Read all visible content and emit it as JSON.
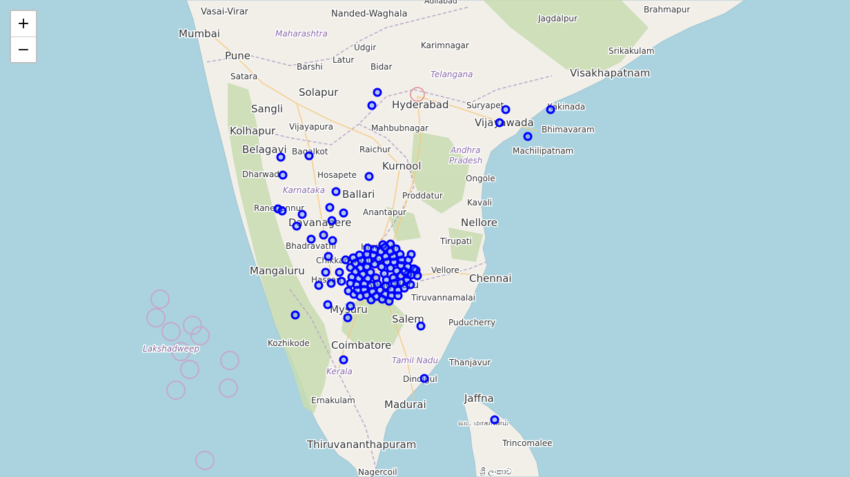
{
  "map": {
    "zoom_controls": {
      "zoom_in": "+",
      "zoom_out": "−"
    },
    "city_labels": {
      "vasai_virar": "Vasai-Virar",
      "nanded": "Nanded-Waghala",
      "adilabad": "Adilabad",
      "jagdalpur": "Jagdalpur",
      "brahmapur": "Brahmapur",
      "mumbai": "Mumbai",
      "udgir": "Udgir",
      "karimnagar": "Karimnagar",
      "srikakulam": "Srikakulam",
      "pune": "Pune",
      "latur": "Latur",
      "barshi": "Barshi",
      "bidar": "Bidar",
      "visakhapatnam": "Visakhapatnam",
      "satara": "Satara",
      "solapur": "Solapur",
      "hyderabad": "Hyderabad",
      "suryapet": "Suryapet",
      "kakinada": "Kakinada",
      "sangli": "Sangli",
      "vijayawada": "Vijayawada",
      "kolhapur": "Kolhapur",
      "vijayapura": "Vijayapura",
      "mahbubnagar": "Mahbubnagar",
      "bhimavaram": "Bhimavaram",
      "machilipatnam": "Machilipatnam",
      "belagavi": "Belagavi",
      "bagalkot": "Bagalkot",
      "raichur": "Raichur",
      "kurnool": "Kurnool",
      "dharwad": "Dharwad",
      "hosapete": "Hosapete",
      "ongole": "Ongole",
      "ballari": "Ballari",
      "proddatur": "Proddatur",
      "kavali": "Kavali",
      "ranebennur": "Ranebennur",
      "anantapur": "Anantapur",
      "davanagere": "Davanagere",
      "nellore": "Nellore",
      "bhadravathi": "Bhadravathi",
      "hindupur": "Hindupur",
      "tirupati": "Tirupati",
      "chikkamagaluru": "Chikkamagaluru",
      "mangaluru": "Mangaluru",
      "vellore": "Vellore",
      "hassan": "Hassan",
      "bengaluru": "Bengaluru",
      "chennai": "Chennai",
      "tiruvannamalai": "Tiruvannamalai",
      "mysuru": "Mysuru",
      "salem": "Salem",
      "puducherry": "Puducherry",
      "kozhikode": "Kozhikode",
      "coimbatore": "Coimbatore",
      "thanjavur": "Thanjavur",
      "dindigul": "Dindigul",
      "ernakulam": "Ernakulam",
      "madurai": "Madurai",
      "jaffna": "Jaffna",
      "vada_maakaanam": "வட மாகாணம்",
      "trincomalee": "Trincomalee",
      "thiruvananthapuram": "Thiruvananthapuram",
      "nagercoil": "Nagercoil",
      "sri_lanka": "ශ්‍රී ලංකාව"
    },
    "state_labels": {
      "maharashtra": "Maharashtra",
      "telangana": "Telangana",
      "karnataka": "Karnataka",
      "andhra_pradesh_1": "Andhra",
      "andhra_pradesh_2": "Pradesh",
      "tamil_nadu": "Tamil Nadu",
      "kerala": "Kerala",
      "lakshadweep": "Lakshadweep"
    },
    "colors": {
      "sea": "#aad3df",
      "land": "#f2efe9",
      "forest": "#c8dcb0",
      "marker_stroke": "#0000ff",
      "marker_fill": "#3f7fff",
      "border": "#b9a6c9",
      "road": "#f7c87e"
    }
  }
}
